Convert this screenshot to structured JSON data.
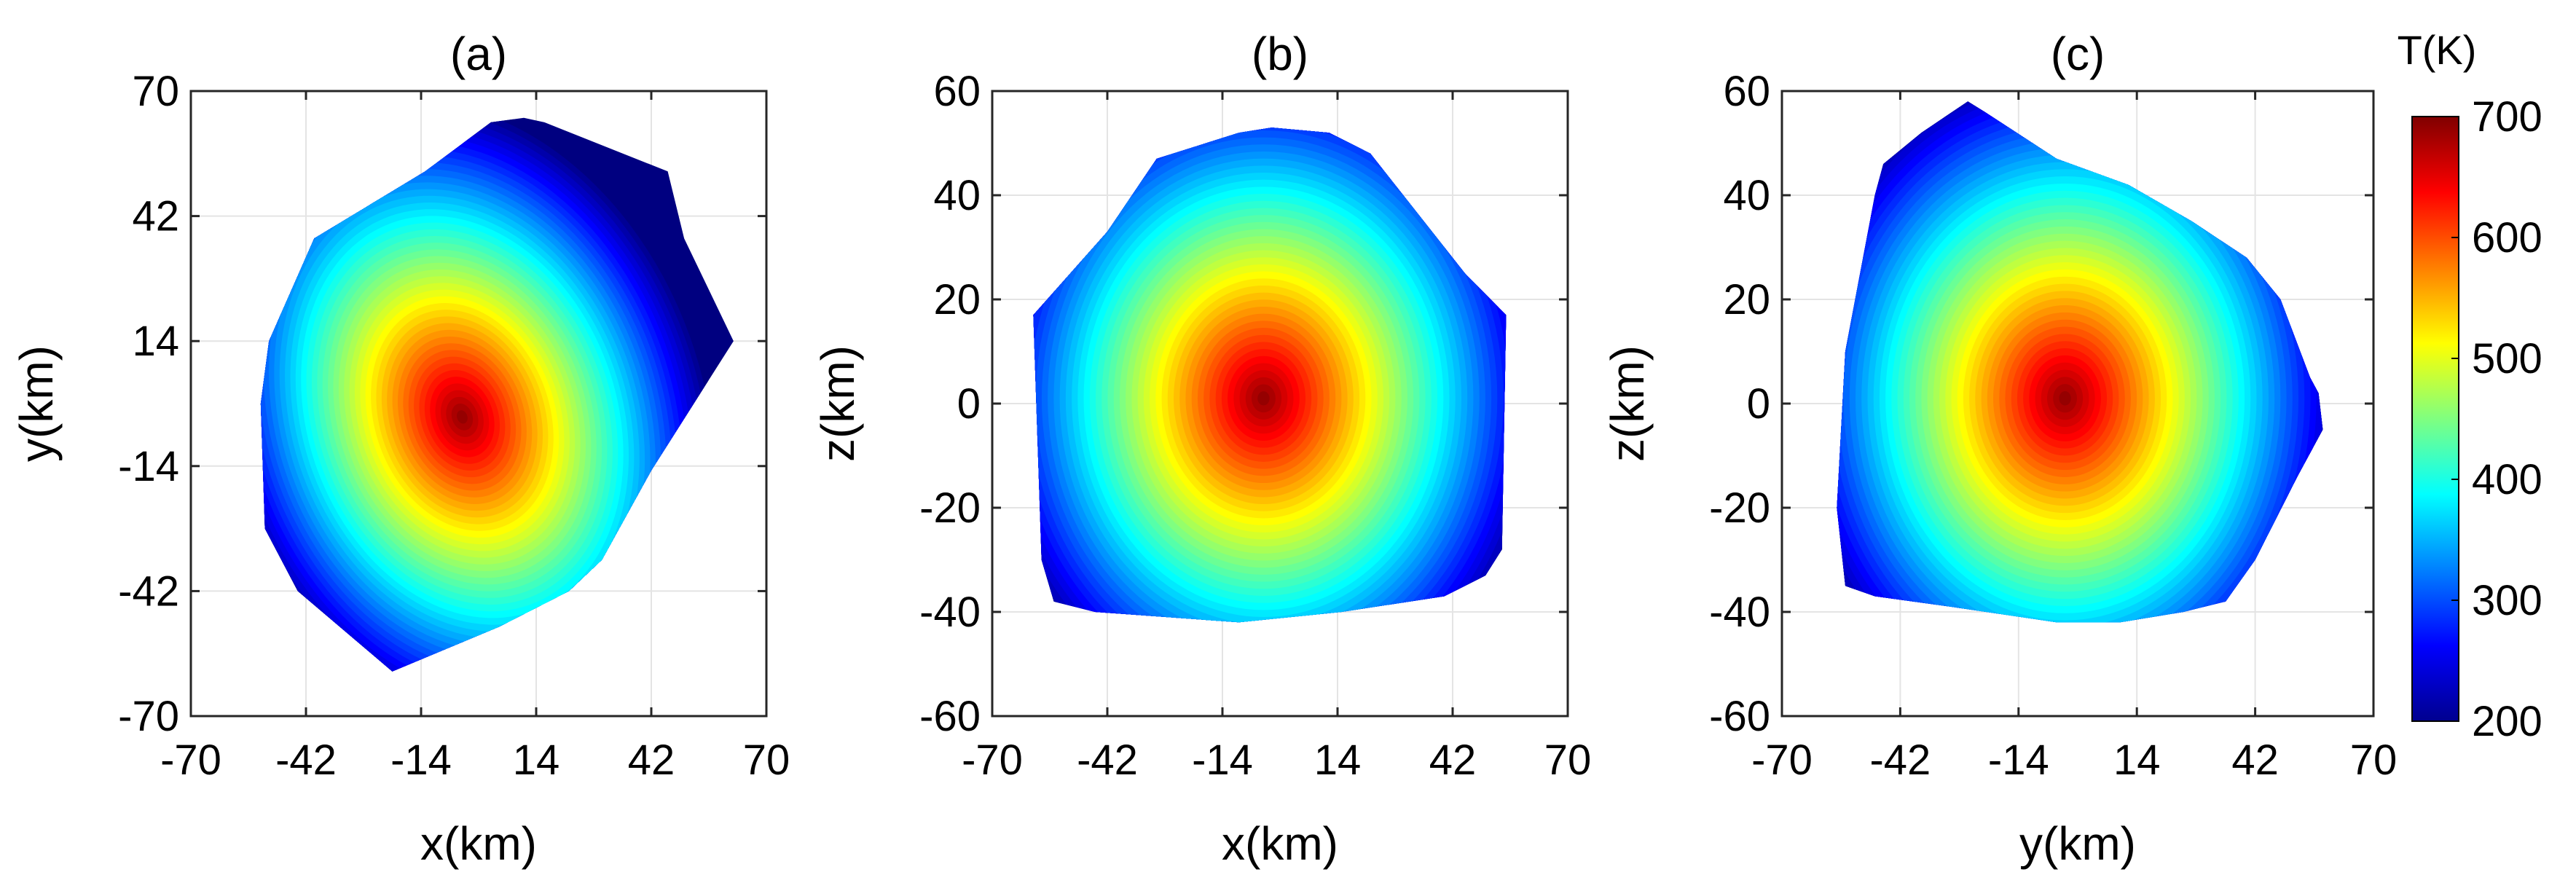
{
  "colorbar": {
    "title": "T(K)",
    "min": 200,
    "max": 700,
    "ticks": [
      200,
      300,
      400,
      500,
      600,
      700
    ],
    "colormap": "jet"
  },
  "chart_data": [
    {
      "type": "heatmap",
      "title": "(a)",
      "xlabel": "x(km)",
      "ylabel": "y(km)",
      "xlim": [
        -70,
        70
      ],
      "ylim": [
        -70,
        70
      ],
      "xticks": [
        -70,
        -42,
        -14,
        14,
        42,
        70
      ],
      "yticks": [
        -70,
        -42,
        -14,
        14,
        42,
        70
      ],
      "grid": true,
      "value_range_K": [
        200,
        700
      ],
      "peak_K": 700,
      "peak_location": [
        -4,
        -3
      ],
      "edge_value_K": 200,
      "field_ellipse": {
        "rx": 60,
        "ry": 74,
        "rotation_deg": 20
      },
      "outline": [
        [
          -21,
          -60
        ],
        [
          -44,
          -42
        ],
        [
          -52,
          -28
        ],
        [
          -53,
          0
        ],
        [
          -51,
          14
        ],
        [
          -40,
          37
        ],
        [
          -13,
          52
        ],
        [
          3,
          63
        ],
        [
          11,
          64
        ],
        [
          16,
          63
        ],
        [
          46,
          52
        ],
        [
          50,
          37
        ],
        [
          62,
          14
        ],
        [
          42,
          -15
        ],
        [
          30,
          -35
        ],
        [
          22,
          -42
        ],
        [
          5,
          -50
        ]
      ]
    },
    {
      "type": "heatmap",
      "title": "(b)",
      "xlabel": "x(km)",
      "ylabel": "z(km)",
      "xlim": [
        -70,
        70
      ],
      "ylim": [
        -60,
        60
      ],
      "xticks": [
        -70,
        -42,
        -14,
        14,
        42,
        70
      ],
      "yticks": [
        -60,
        -40,
        -20,
        0,
        20,
        40,
        60
      ],
      "grid": true,
      "value_range_K": [
        200,
        700
      ],
      "peak_K": 700,
      "peak_location": [
        -4,
        1
      ],
      "edge_value_K": 200,
      "field_ellipse": {
        "rx": 70,
        "ry": 65,
        "rotation_deg": 0
      },
      "outline": [
        [
          -60,
          17
        ],
        [
          -58,
          -30
        ],
        [
          -55,
          -38
        ],
        [
          -45,
          -40
        ],
        [
          -10,
          -42
        ],
        [
          15,
          -40
        ],
        [
          40,
          -37
        ],
        [
          50,
          -33
        ],
        [
          54,
          -28
        ],
        [
          55,
          17
        ],
        [
          45,
          25
        ],
        [
          22,
          48
        ],
        [
          12,
          52
        ],
        [
          -2,
          53
        ],
        [
          -10,
          52
        ],
        [
          -30,
          47
        ],
        [
          -42,
          33
        ]
      ]
    },
    {
      "type": "heatmap",
      "title": "(c)",
      "xlabel": "y(km)",
      "ylabel": "z(km)",
      "xlim": [
        -70,
        70
      ],
      "ylim": [
        -60,
        60
      ],
      "xticks": [
        -70,
        -42,
        -14,
        14,
        42,
        70
      ],
      "yticks": [
        -60,
        -40,
        -20,
        0,
        20,
        40,
        60
      ],
      "grid": true,
      "value_range_K": [
        200,
        700
      ],
      "peak_K": 700,
      "peak_location": [
        -3,
        1
      ],
      "edge_value_K": 200,
      "field_ellipse": {
        "rx": 68,
        "ry": 66,
        "rotation_deg": 0
      },
      "outline": [
        [
          -55,
          -35
        ],
        [
          -48,
          -37
        ],
        [
          -30,
          -39
        ],
        [
          -5,
          -42
        ],
        [
          10,
          -42
        ],
        [
          25,
          -40
        ],
        [
          35,
          -38
        ],
        [
          42,
          -30
        ],
        [
          52,
          -14
        ],
        [
          58,
          -5
        ],
        [
          57,
          2
        ],
        [
          55,
          5
        ],
        [
          48,
          20
        ],
        [
          40,
          28
        ],
        [
          27,
          35
        ],
        [
          12,
          42
        ],
        [
          -5,
          47
        ],
        [
          -22,
          56
        ],
        [
          -26,
          58
        ],
        [
          -37,
          52
        ],
        [
          -46,
          46
        ],
        [
          -48,
          40
        ],
        [
          -55,
          10
        ],
        [
          -57,
          -20
        ]
      ]
    }
  ]
}
